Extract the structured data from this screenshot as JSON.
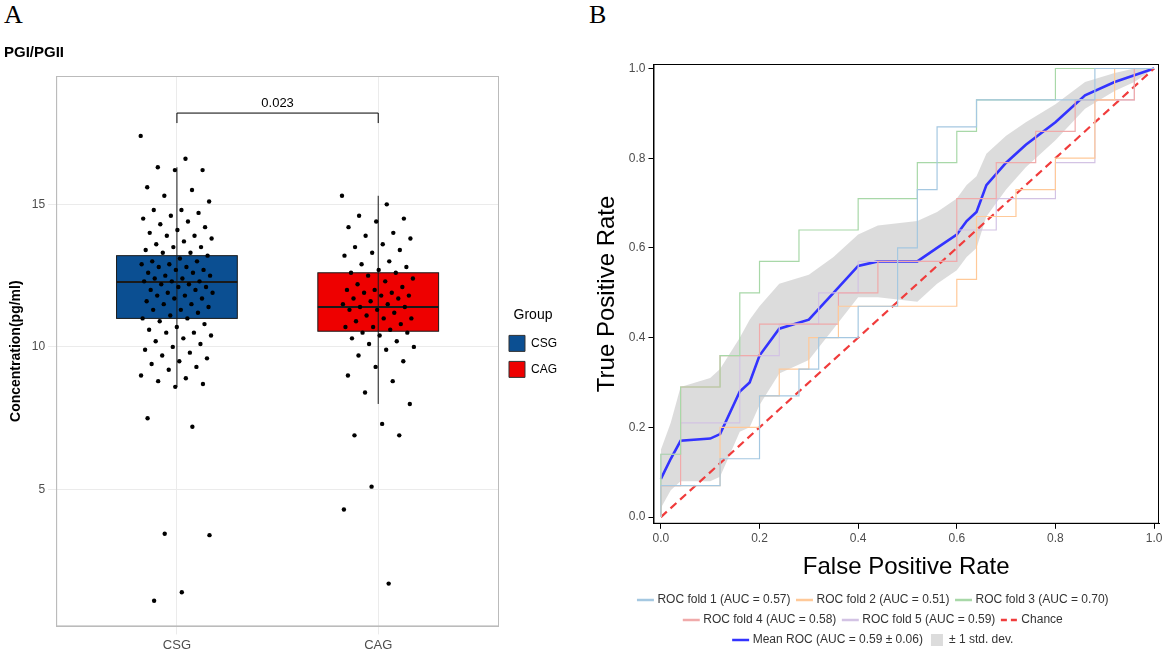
{
  "chart_data": [
    {
      "type": "box",
      "panel": "A",
      "title": "PGI/PGII",
      "y_label": "Concentration(pg/ml)",
      "legend_title": "Group",
      "legend": "right",
      "grid": true,
      "ylim": [
        0.2,
        19.5
      ],
      "yticks": [
        5,
        10,
        15
      ],
      "categories": [
        "CSG",
        "CAG"
      ],
      "series": [
        {
          "name": "CSG",
          "color": "#0b4f92",
          "q1": 11.0,
          "median": 12.28,
          "q3": 13.2,
          "whisker_low": 8.6,
          "whisker_high": 16.3,
          "points": [
            17.4,
            16.6,
            16.3,
            16.2,
            16.2,
            15.6,
            15.5,
            15.3,
            15.1,
            14.8,
            14.8,
            14.7,
            14.6,
            14.5,
            14.4,
            14.3,
            14.2,
            14.1,
            14.0,
            13.9,
            13.9,
            13.8,
            13.7,
            13.6,
            13.5,
            13.5,
            13.4,
            13.3,
            13.3,
            13.2,
            13.1,
            13.0,
            13.0,
            12.9,
            12.9,
            12.8,
            12.8,
            12.7,
            12.7,
            12.6,
            12.6,
            12.5,
            12.5,
            12.4,
            12.4,
            12.3,
            12.3,
            12.3,
            12.2,
            12.2,
            12.1,
            12.1,
            12.0,
            12.0,
            11.9,
            11.9,
            11.8,
            11.8,
            11.7,
            11.7,
            11.6,
            11.5,
            11.5,
            11.4,
            11.3,
            11.3,
            11.2,
            11.1,
            11.0,
            11.0,
            10.9,
            10.8,
            10.7,
            10.6,
            10.5,
            10.5,
            10.4,
            10.3,
            10.2,
            10.1,
            10.0,
            9.9,
            9.8,
            9.7,
            9.6,
            9.5,
            9.4,
            9.3,
            9.2,
            9.0,
            8.9,
            8.8,
            8.7,
            8.6,
            7.5,
            7.2,
            3.45,
            3.4,
            1.4,
            1.1
          ]
        },
        {
          "name": "CAG",
          "color": "#ee0000",
          "q1": 10.55,
          "median": 11.4,
          "q3": 12.6,
          "whisker_low": 8.0,
          "whisker_high": 15.3,
          "points": [
            15.3,
            15.0,
            14.6,
            14.5,
            14.4,
            14.2,
            14.0,
            13.9,
            13.8,
            13.6,
            13.5,
            13.4,
            13.3,
            13.2,
            13.0,
            12.9,
            12.8,
            12.7,
            12.6,
            12.6,
            12.5,
            12.4,
            12.3,
            12.2,
            12.1,
            12.0,
            12.0,
            11.9,
            11.9,
            11.8,
            11.8,
            11.7,
            11.7,
            11.6,
            11.5,
            11.5,
            11.4,
            11.4,
            11.3,
            11.3,
            11.2,
            11.1,
            11.0,
            11.0,
            10.9,
            10.8,
            10.7,
            10.7,
            10.6,
            10.5,
            10.5,
            10.4,
            10.3,
            10.2,
            10.1,
            10.0,
            9.9,
            9.7,
            9.5,
            9.3,
            9.0,
            8.8,
            8.4,
            8.0,
            7.3,
            6.9,
            6.9,
            5.1,
            4.3,
            1.7
          ]
        }
      ],
      "annotations": [
        {
          "text": "0.023",
          "from": "CSG",
          "to": "CAG",
          "y": 18.2
        }
      ]
    },
    {
      "type": "line",
      "panel": "B",
      "x_label": "False Positive Rate",
      "y_label": "True Positive Rate",
      "legend": "bottom",
      "grid": false,
      "xlim": [
        -0.015,
        1.01
      ],
      "ylim": [
        -0.015,
        1.01
      ],
      "xticks": [
        {
          "value": 0,
          "label": "0.0"
        },
        {
          "value": 0.2,
          "label": "0.2"
        },
        {
          "value": 0.4,
          "label": "0.4"
        },
        {
          "value": 0.6,
          "label": "0.6"
        },
        {
          "value": 0.8,
          "label": "0.8"
        },
        {
          "value": 1,
          "label": "1.0"
        }
      ],
      "yticks": [
        {
          "value": 0,
          "label": "0.0"
        },
        {
          "value": 0.2,
          "label": "0.2"
        },
        {
          "value": 0.4,
          "label": "0.4"
        },
        {
          "value": 0.6,
          "label": "0.6"
        },
        {
          "value": 0.8,
          "label": "0.8"
        },
        {
          "value": 1,
          "label": "1.0"
        }
      ],
      "series": [
        {
          "name": "ROC fold 1 (AUC = 0.57)",
          "color": "#a5c8e1",
          "line_style": "thin",
          "x": [
            0,
            0,
            0.12,
            0.12,
            0.2,
            0.2,
            0.28,
            0.28,
            0.32,
            0.32,
            0.4,
            0.4,
            0.48,
            0.48,
            0.52,
            0.52,
            0.56,
            0.56,
            0.64,
            0.64,
            0.88,
            0.88,
            1.0
          ],
          "values": [
            0,
            0.07,
            0.07,
            0.13,
            0.13,
            0.27,
            0.27,
            0.33,
            0.33,
            0.4,
            0.4,
            0.47,
            0.47,
            0.6,
            0.6,
            0.73,
            0.73,
            0.87,
            0.87,
            0.93,
            0.93,
            1.0,
            1.0
          ]
        },
        {
          "name": "ROC fold 2 (AUC = 0.51)",
          "color": "#ffc999",
          "line_style": "thin",
          "x": [
            0,
            0,
            0.12,
            0.12,
            0.2,
            0.2,
            0.24,
            0.24,
            0.3,
            0.3,
            0.36,
            0.36,
            0.6,
            0.6,
            0.64,
            0.64,
            0.72,
            0.72,
            0.8,
            0.8,
            0.88,
            0.88,
            0.92,
            0.92,
            1.0
          ],
          "values": [
            0,
            0.07,
            0.07,
            0.2,
            0.2,
            0.27,
            0.27,
            0.33,
            0.33,
            0.4,
            0.4,
            0.47,
            0.47,
            0.53,
            0.53,
            0.67,
            0.67,
            0.73,
            0.73,
            0.8,
            0.8,
            0.93,
            0.93,
            1.0,
            1.0
          ]
        },
        {
          "name": "ROC fold 3 (AUC = 0.70)",
          "color": "#a8d8a8",
          "line_style": "thin",
          "x": [
            0,
            0,
            0.04,
            0.04,
            0.12,
            0.12,
            0.16,
            0.16,
            0.2,
            0.2,
            0.28,
            0.28,
            0.4,
            0.4,
            0.52,
            0.52,
            0.6,
            0.6,
            0.64,
            0.64,
            0.8,
            0.8,
            1.0
          ],
          "values": [
            0,
            0.14,
            0.14,
            0.29,
            0.29,
            0.36,
            0.36,
            0.5,
            0.5,
            0.57,
            0.57,
            0.64,
            0.64,
            0.71,
            0.71,
            0.79,
            0.79,
            0.86,
            0.86,
            0.93,
            0.93,
            1.0,
            1.0
          ]
        },
        {
          "name": "ROC fold 4 (AUC = 0.58)",
          "color": "#f0aaaa",
          "line_style": "thin",
          "x": [
            0,
            0,
            0.04,
            0.04,
            0.12,
            0.12,
            0.2,
            0.2,
            0.36,
            0.36,
            0.44,
            0.44,
            0.6,
            0.6,
            0.68,
            0.68,
            0.76,
            0.76,
            0.84,
            0.84,
            0.96,
            0.96,
            1.0
          ],
          "values": [
            0,
            0.07,
            0.07,
            0.29,
            0.29,
            0.36,
            0.36,
            0.43,
            0.43,
            0.5,
            0.5,
            0.57,
            0.57,
            0.71,
            0.71,
            0.79,
            0.79,
            0.86,
            0.86,
            0.93,
            0.93,
            1.0,
            1.0
          ]
        },
        {
          "name": "ROC fold 5 (AUC = 0.59)",
          "color": "#d3c3e4",
          "line_style": "thin",
          "x": [
            0,
            0,
            0.04,
            0.04,
            0.16,
            0.16,
            0.24,
            0.24,
            0.32,
            0.32,
            0.4,
            0.4,
            0.6,
            0.6,
            0.68,
            0.68,
            0.8,
            0.8,
            0.88,
            0.88,
            0.96,
            0.96,
            1.0
          ],
          "values": [
            0,
            0.14,
            0.14,
            0.21,
            0.21,
            0.36,
            0.36,
            0.43,
            0.43,
            0.5,
            0.5,
            0.57,
            0.57,
            0.64,
            0.64,
            0.71,
            0.71,
            0.79,
            0.79,
            0.93,
            0.93,
            1.0,
            1.0
          ]
        },
        {
          "name": "Chance",
          "color": "#f03c3c",
          "line_style": "dashed",
          "x": [
            0,
            1
          ],
          "values": [
            0,
            1
          ]
        },
        {
          "name": "Mean ROC (AUC = 0.59 ± 0.06)",
          "color": "#3333ff",
          "line_style": "solid",
          "x": [
            0,
            0.02,
            0.04,
            0.1,
            0.12,
            0.16,
            0.18,
            0.2,
            0.24,
            0.3,
            0.35,
            0.4,
            0.44,
            0.52,
            0.56,
            0.6,
            0.62,
            0.64,
            0.66,
            0.7,
            0.74,
            0.8,
            0.86,
            0.92,
            0.96,
            1.0
          ],
          "values": [
            0.085,
            0.13,
            0.17,
            0.175,
            0.185,
            0.28,
            0.3,
            0.36,
            0.42,
            0.44,
            0.5,
            0.56,
            0.57,
            0.57,
            0.6,
            0.63,
            0.66,
            0.68,
            0.74,
            0.79,
            0.83,
            0.88,
            0.94,
            0.97,
            0.985,
            1.0
          ]
        },
        {
          "name": "± 1 std. dev.",
          "type": "band",
          "color": "#bfbfbf",
          "x": [
            0,
            0.02,
            0.04,
            0.1,
            0.12,
            0.16,
            0.18,
            0.2,
            0.24,
            0.3,
            0.35,
            0.4,
            0.44,
            0.52,
            0.56,
            0.6,
            0.62,
            0.64,
            0.66,
            0.7,
            0.74,
            0.8,
            0.86,
            0.92,
            0.96,
            1.0
          ],
          "lower": [
            0.02,
            0.06,
            0.08,
            0.08,
            0.09,
            0.19,
            0.2,
            0.25,
            0.32,
            0.35,
            0.42,
            0.49,
            0.49,
            0.48,
            0.52,
            0.55,
            0.58,
            0.6,
            0.67,
            0.73,
            0.78,
            0.84,
            0.91,
            0.95,
            0.97,
            1.0
          ],
          "upper": [
            0.15,
            0.21,
            0.29,
            0.31,
            0.33,
            0.4,
            0.44,
            0.47,
            0.52,
            0.54,
            0.58,
            0.63,
            0.65,
            0.66,
            0.68,
            0.71,
            0.74,
            0.76,
            0.81,
            0.85,
            0.88,
            0.92,
            0.97,
            0.99,
            1.0,
            1.0
          ]
        }
      ]
    }
  ]
}
